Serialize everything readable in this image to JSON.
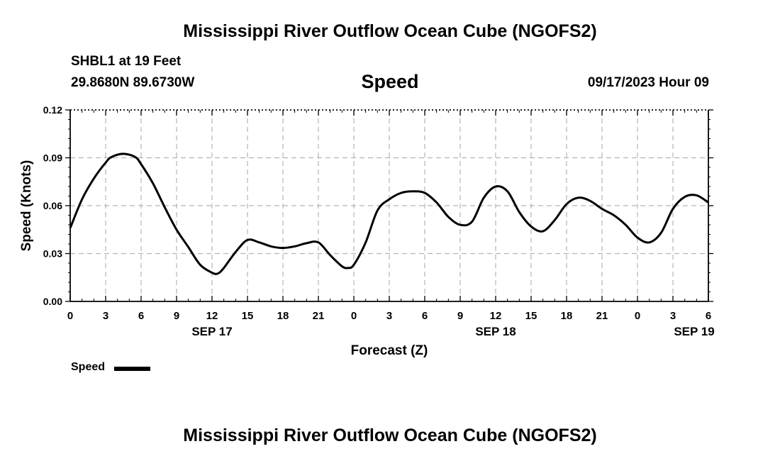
{
  "header": {
    "title": "Mississippi River Outflow Ocean Cube (NGOFS2)",
    "station": "SHBL1 at 19 Feet",
    "coords": "29.8680N  89.6730W",
    "parameter": "Speed",
    "datetime": "09/17/2023 Hour 09"
  },
  "footer": {
    "title": "Mississippi River Outflow Ocean Cube (NGOFS2)"
  },
  "legend": {
    "label": "Speed"
  },
  "chart_data": {
    "type": "line",
    "title": "Speed",
    "xlabel": "Forecast (Z)",
    "ylabel": "Speed (Knots)",
    "xlim": [
      0,
      54
    ],
    "ylim": [
      0,
      0.12
    ],
    "yticks": [
      "0.00",
      "0.03",
      "0.06",
      "0.09",
      "0.12"
    ],
    "xticks": [
      "0",
      "3",
      "6",
      "9",
      "12",
      "15",
      "18",
      "21",
      "0",
      "3",
      "6",
      "9",
      "12",
      "15",
      "18",
      "21",
      "0",
      "3",
      "6"
    ],
    "date_labels": [
      {
        "label": "SEP 17",
        "hour": 12
      },
      {
        "label": "SEP 18",
        "hour": 36
      },
      {
        "label": "SEP 19",
        "hour": 52.8
      }
    ],
    "grid": true,
    "series": [
      {
        "name": "Speed",
        "color": "#000000",
        "x": [
          0,
          1,
          2,
          3,
          3.5,
          4.5,
          5.5,
          6,
          7,
          8,
          9,
          10,
          11,
          12,
          12.5,
          13,
          14,
          15,
          16,
          17,
          18,
          19,
          20,
          21,
          22,
          23,
          23.5,
          24,
          25,
          26,
          27,
          28,
          29,
          30,
          31,
          32,
          33,
          34,
          35,
          36,
          37,
          38,
          39,
          40,
          41,
          42,
          43,
          44,
          45,
          46,
          47,
          48,
          49,
          50,
          51,
          52,
          53,
          54
        ],
        "y": [
          0.046,
          0.064,
          0.077,
          0.087,
          0.0905,
          0.0925,
          0.0905,
          0.086,
          0.074,
          0.059,
          0.045,
          0.034,
          0.023,
          0.018,
          0.0175,
          0.021,
          0.031,
          0.0385,
          0.037,
          0.0345,
          0.0335,
          0.0345,
          0.0365,
          0.037,
          0.029,
          0.022,
          0.021,
          0.023,
          0.037,
          0.057,
          0.064,
          0.068,
          0.069,
          0.068,
          0.062,
          0.053,
          0.048,
          0.05,
          0.065,
          0.072,
          0.069,
          0.056,
          0.047,
          0.044,
          0.051,
          0.061,
          0.065,
          0.063,
          0.058,
          0.054,
          0.048,
          0.04,
          0.037,
          0.043,
          0.058,
          0.0655,
          0.0665,
          0.062
        ]
      }
    ]
  }
}
